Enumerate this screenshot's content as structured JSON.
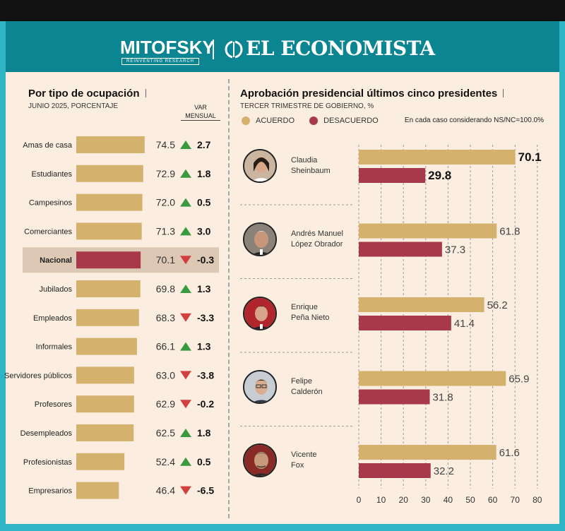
{
  "header": {
    "brand1": "MITOFSKY",
    "brand1_sub": "REINVENTING RESEARCH",
    "brand2": "EL ECONOMISTA"
  },
  "left": {
    "title": "Por tipo de ocupación",
    "subtitle": "JUNIO 2025, PORCENTAJE",
    "var_head_1": "VAR",
    "var_head_2": "MENSUAL"
  },
  "right": {
    "title": "Aprobación presidencial últimos cinco presidentes",
    "subtitle": "TERCER TRIMESTRE DE GOBIERNO, %",
    "legend_acuerdo": "ACUERDO",
    "legend_desacuerdo": "DESACUERDO",
    "note": "En cada caso considerando NS/NC=100.0%",
    "presidents": [
      {
        "line1": "Claudia",
        "line2": "Sheinbaum"
      },
      {
        "line1": "Andrés Manuel",
        "line2": "López Obrador"
      },
      {
        "line1": "Enrique",
        "line2": "Peña Nieto"
      },
      {
        "line1": "Felipe",
        "line2": "Calderón"
      },
      {
        "line1": "Vicente",
        "line2": "Fox"
      }
    ]
  },
  "colors": {
    "gold": "#d4b26e",
    "crimson": "#a8394b",
    "up": "#3a9a3f",
    "down": "#d33f3f",
    "highlight": "#dcc8b4"
  },
  "chart_data": [
    {
      "type": "bar",
      "orientation": "horizontal",
      "title": "Por tipo de ocupación",
      "subtitle": "JUNIO 2025, PORCENTAJE",
      "categories": [
        "Amas de casa",
        "Estudiantes",
        "Campesinos",
        "Comerciantes",
        "Nacional",
        "Jubilados",
        "Empleados",
        "Informales",
        "Servidores públicos",
        "Profesores",
        "Desempleados",
        "Profesionistas",
        "Empresarios"
      ],
      "values": [
        74.5,
        72.9,
        72.0,
        71.3,
        70.1,
        69.8,
        68.3,
        66.1,
        63.0,
        62.9,
        62.5,
        52.4,
        46.4
      ],
      "value_labels": [
        "74.5",
        "72.9",
        "72.0",
        "71.3",
        "70.1",
        "69.8",
        "68.3",
        "66.1",
        "63.0",
        "62.9",
        "62.5",
        "52.4",
        "46.4"
      ],
      "var_mensual": [
        2.7,
        1.8,
        0.5,
        3.0,
        -0.3,
        1.3,
        -3.3,
        1.3,
        -3.8,
        -0.2,
        1.8,
        0.5,
        -6.5
      ],
      "var_labels": [
        "2.7",
        "1.8",
        "0.5",
        "3.0",
        "-0.3",
        "1.3",
        "-3.3",
        "1.3",
        "-3.8",
        "-0.2",
        "1.8",
        "0.5",
        "-6.5"
      ],
      "highlight": "Nacional",
      "xlim": [
        0,
        100
      ]
    },
    {
      "type": "bar",
      "orientation": "horizontal",
      "title": "Aprobación presidencial últimos cinco presidentes",
      "categories": [
        "Claudia Sheinbaum",
        "Andrés Manuel López Obrador",
        "Enrique Peña Nieto",
        "Felipe Calderón",
        "Vicente Fox"
      ],
      "series": [
        {
          "name": "ACUERDO",
          "values": [
            70.1,
            61.8,
            56.2,
            65.9,
            61.6
          ],
          "labels": [
            "70.1",
            "61.8",
            "56.2",
            "65.9",
            "61.6"
          ]
        },
        {
          "name": "DESACUERDO",
          "values": [
            29.8,
            37.3,
            41.4,
            31.8,
            32.2
          ],
          "labels": [
            "29.8",
            "37.3",
            "41.4",
            "31.8",
            "32.2"
          ]
        }
      ],
      "bold_category": "Claudia Sheinbaum",
      "xlim": [
        0,
        80
      ],
      "xticks": [
        "0",
        "10",
        "20",
        "30",
        "40",
        "50",
        "60",
        "70",
        "80"
      ]
    }
  ]
}
